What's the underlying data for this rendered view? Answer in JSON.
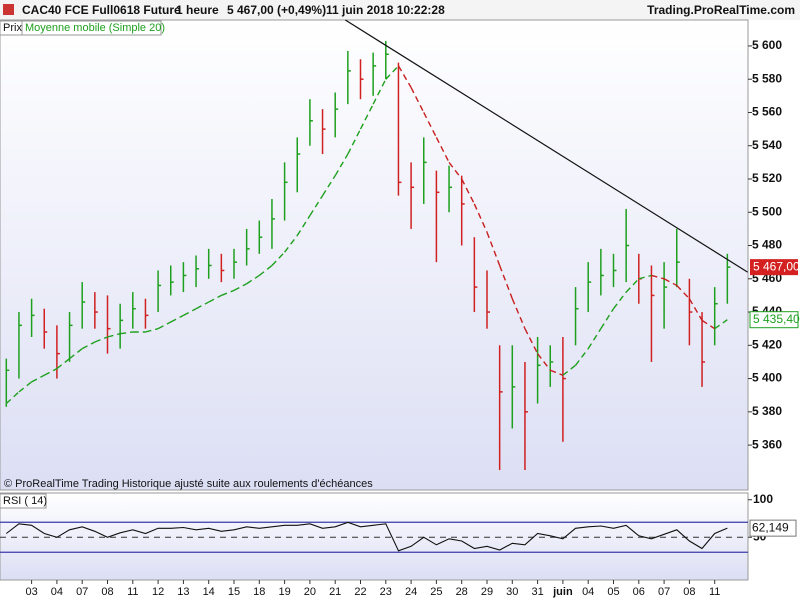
{
  "header": {
    "symbol": "CAC40 FCE Full0618 Future",
    "period": "1 heure",
    "price": "5 467,00 (+0,49%)",
    "datetime": "11 juin 2018 10:22:28",
    "site": "Trading.ProRealTime.com",
    "footnote": "© ProRealTime Trading  Historique ajusté suite aux roulements d'échéances"
  },
  "chart_data": [
    {
      "type": "ohlc",
      "categories": [
        null,
        null,
        "03",
        null,
        "04",
        null,
        "07",
        null,
        "08",
        null,
        "11",
        null,
        "12",
        null,
        "13",
        null,
        "14",
        null,
        "15",
        null,
        "18",
        null,
        "19",
        null,
        "20",
        null,
        "21",
        null,
        "22",
        null,
        "23",
        null,
        "24",
        null,
        "25",
        null,
        "28",
        null,
        "29",
        null,
        "30",
        null,
        "31",
        null,
        "juin",
        null,
        "04",
        null,
        "05",
        null,
        "06",
        null,
        "07",
        null,
        "08",
        null,
        "11",
        null
      ],
      "ylim": [
        5333,
        5615.6
      ],
      "yticks": [
        {
          "value": 5360,
          "label": "5 360"
        },
        {
          "value": 5380,
          "label": "5 380"
        },
        {
          "value": 5400,
          "label": "5 400"
        },
        {
          "value": 5420,
          "label": "5 420"
        },
        {
          "value": 5440,
          "label": "5 440"
        },
        {
          "value": 5460,
          "label": "5 460"
        },
        {
          "value": 5480,
          "label": "5 480"
        },
        {
          "value": 5500,
          "label": "5 500"
        },
        {
          "value": 5520,
          "label": "5 520"
        },
        {
          "value": 5540,
          "label": "5 540"
        },
        {
          "value": 5560,
          "label": "5 560"
        },
        {
          "value": 5580,
          "label": "5 580"
        },
        {
          "value": 5600,
          "label": "5 600"
        }
      ],
      "series": [
        {
          "name": "Prix",
          "up_color": "#1ea01e",
          "down_color": "#d02020",
          "label_color": "#d42020",
          "last_value_label": "5 467,00",
          "high": [
            5412,
            5440,
            5448,
            5442,
            5432,
            5440,
            5458,
            5452,
            5450,
            5445,
            5452,
            5448,
            5465,
            5468,
            5470,
            5474,
            5478,
            5475,
            5478,
            5490,
            5495,
            5508,
            5530,
            5545,
            5568,
            5562,
            5572,
            5597,
            5592,
            5596,
            5603,
            5590,
            5530,
            5545,
            5525,
            5528,
            5522,
            5485,
            5465,
            5420,
            5420,
            5410,
            5425,
            5420,
            5425,
            5455,
            5470,
            5478,
            5475,
            5502,
            5475,
            5468,
            5470,
            5490,
            5460,
            5440,
            5455,
            5475
          ],
          "low": [
            5383,
            5400,
            5425,
            5418,
            5400,
            5410,
            5430,
            5430,
            5415,
            5418,
            5430,
            5430,
            5440,
            5450,
            5452,
            5455,
            5460,
            5458,
            5460,
            5468,
            5475,
            5478,
            5495,
            5512,
            5540,
            5535,
            5545,
            5565,
            5568,
            5570,
            5580,
            5510,
            5490,
            5505,
            5470,
            5500,
            5480,
            5440,
            5430,
            5345,
            5370,
            5345,
            5385,
            5395,
            5362,
            5420,
            5440,
            5450,
            5455,
            5458,
            5445,
            5410,
            5430,
            5455,
            5420,
            5395,
            5420,
            5445
          ],
          "close": [
            5405,
            5432,
            5438,
            5428,
            5415,
            5432,
            5446,
            5440,
            5430,
            5435,
            5442,
            5438,
            5456,
            5458,
            5462,
            5466,
            5468,
            5465,
            5470,
            5478,
            5485,
            5496,
            5518,
            5535,
            5555,
            5550,
            5562,
            5585,
            5580,
            5588,
            5595,
            5518,
            5515,
            5530,
            5512,
            5515,
            5505,
            5455,
            5440,
            5392,
            5395,
            5380,
            5408,
            5410,
            5400,
            5442,
            5458,
            5462,
            5465,
            5480,
            5460,
            5450,
            5455,
            5470,
            5440,
            5410,
            5445,
            5467
          ]
        },
        {
          "name": "Moyenne mobile (Simple 20)",
          "up_color": "#1ea01e",
          "down_color": "#c81e1e",
          "last_value_label": "5 435,40",
          "values": [
            5385,
            5392,
            5398,
            5402,
            5406,
            5412,
            5418,
            5422,
            5425,
            5427,
            5428,
            5428,
            5430,
            5434,
            5438,
            5442,
            5446,
            5450,
            5453,
            5457,
            5462,
            5468,
            5476,
            5486,
            5498,
            5510,
            5522,
            5535,
            5550,
            5565,
            5580,
            5588,
            5575,
            5560,
            5545,
            5530,
            5520,
            5505,
            5488,
            5468,
            5448,
            5430,
            5415,
            5405,
            5402,
            5408,
            5418,
            5430,
            5442,
            5452,
            5460,
            5462,
            5460,
            5456,
            5448,
            5435,
            5430,
            5435.4
          ]
        }
      ],
      "trendline": {
        "x": [
          26.8,
          58.6
        ],
        "y": [
          5615.6,
          5464
        ],
        "color": "#111111"
      }
    },
    {
      "type": "line",
      "ylim": [
        -7,
        109
      ],
      "yticks": [
        100,
        50
      ],
      "hlines": [
        70,
        30
      ],
      "series": [
        {
          "name": "RSI ( 14)",
          "color": "#111111",
          "last_value_label": "62,149",
          "values": [
            55,
            68,
            66,
            55,
            50,
            60,
            64,
            58,
            50,
            56,
            60,
            55,
            62,
            62,
            63,
            60,
            62,
            58,
            60,
            64,
            62,
            64,
            66,
            66,
            68,
            62,
            64,
            70,
            64,
            66,
            68,
            32,
            38,
            50,
            40,
            48,
            45,
            35,
            38,
            33,
            42,
            40,
            55,
            52,
            48,
            62,
            64,
            65,
            62,
            66,
            52,
            48,
            54,
            60,
            45,
            35,
            55,
            62.149
          ]
        }
      ]
    }
  ]
}
